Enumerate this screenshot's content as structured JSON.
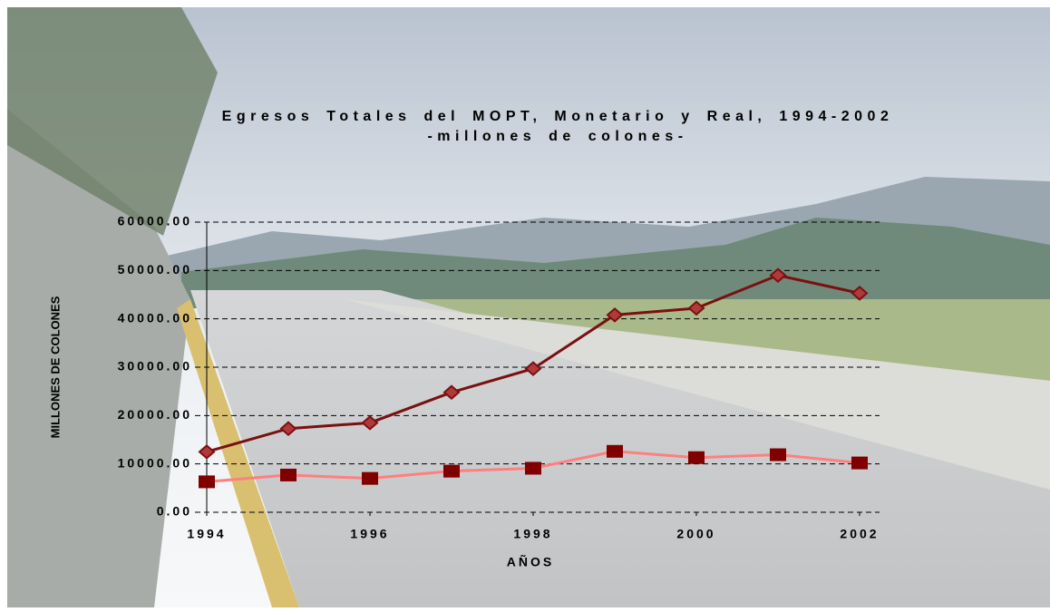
{
  "chart_data": {
    "type": "line",
    "title": "Egresos Totales del MOPT, Monetario y Real,    1994-2002",
    "subtitle": "-millones de colones-",
    "x_label": "AÑOS",
    "y_label": "MILLONES DE COLONES",
    "x": [
      1994,
      1995,
      1996,
      1997,
      1998,
      1999,
      2000,
      2001,
      2002
    ],
    "series": [
      {
        "color": "#7a1010",
        "marker": "diamond",
        "values": [
          12500,
          17300,
          18500,
          24800,
          29700,
          40800,
          42200,
          49000,
          45300
        ]
      },
      {
        "color": "#ff7f7f",
        "marker": "square",
        "values": [
          6300,
          7700,
          7000,
          8500,
          9100,
          12600,
          11300,
          11900,
          10200
        ]
      }
    ],
    "xlim": [
      1994,
      2002
    ],
    "xticks": [
      1994,
      1996,
      1998,
      2000,
      2002
    ],
    "ylim": [
      0,
      60000
    ],
    "yticks": [
      {
        "value": 0,
        "label": "0.00"
      },
      {
        "value": 10000,
        "label": "10000.00"
      },
      {
        "value": 20000,
        "label": "20000.00"
      },
      {
        "value": 30000,
        "label": "30000.00"
      },
      {
        "value": 40000,
        "label": "40000.00"
      },
      {
        "value": 50000,
        "label": "50000.00"
      },
      {
        "value": 60000,
        "label": "60000.00"
      }
    ],
    "grid": true
  }
}
